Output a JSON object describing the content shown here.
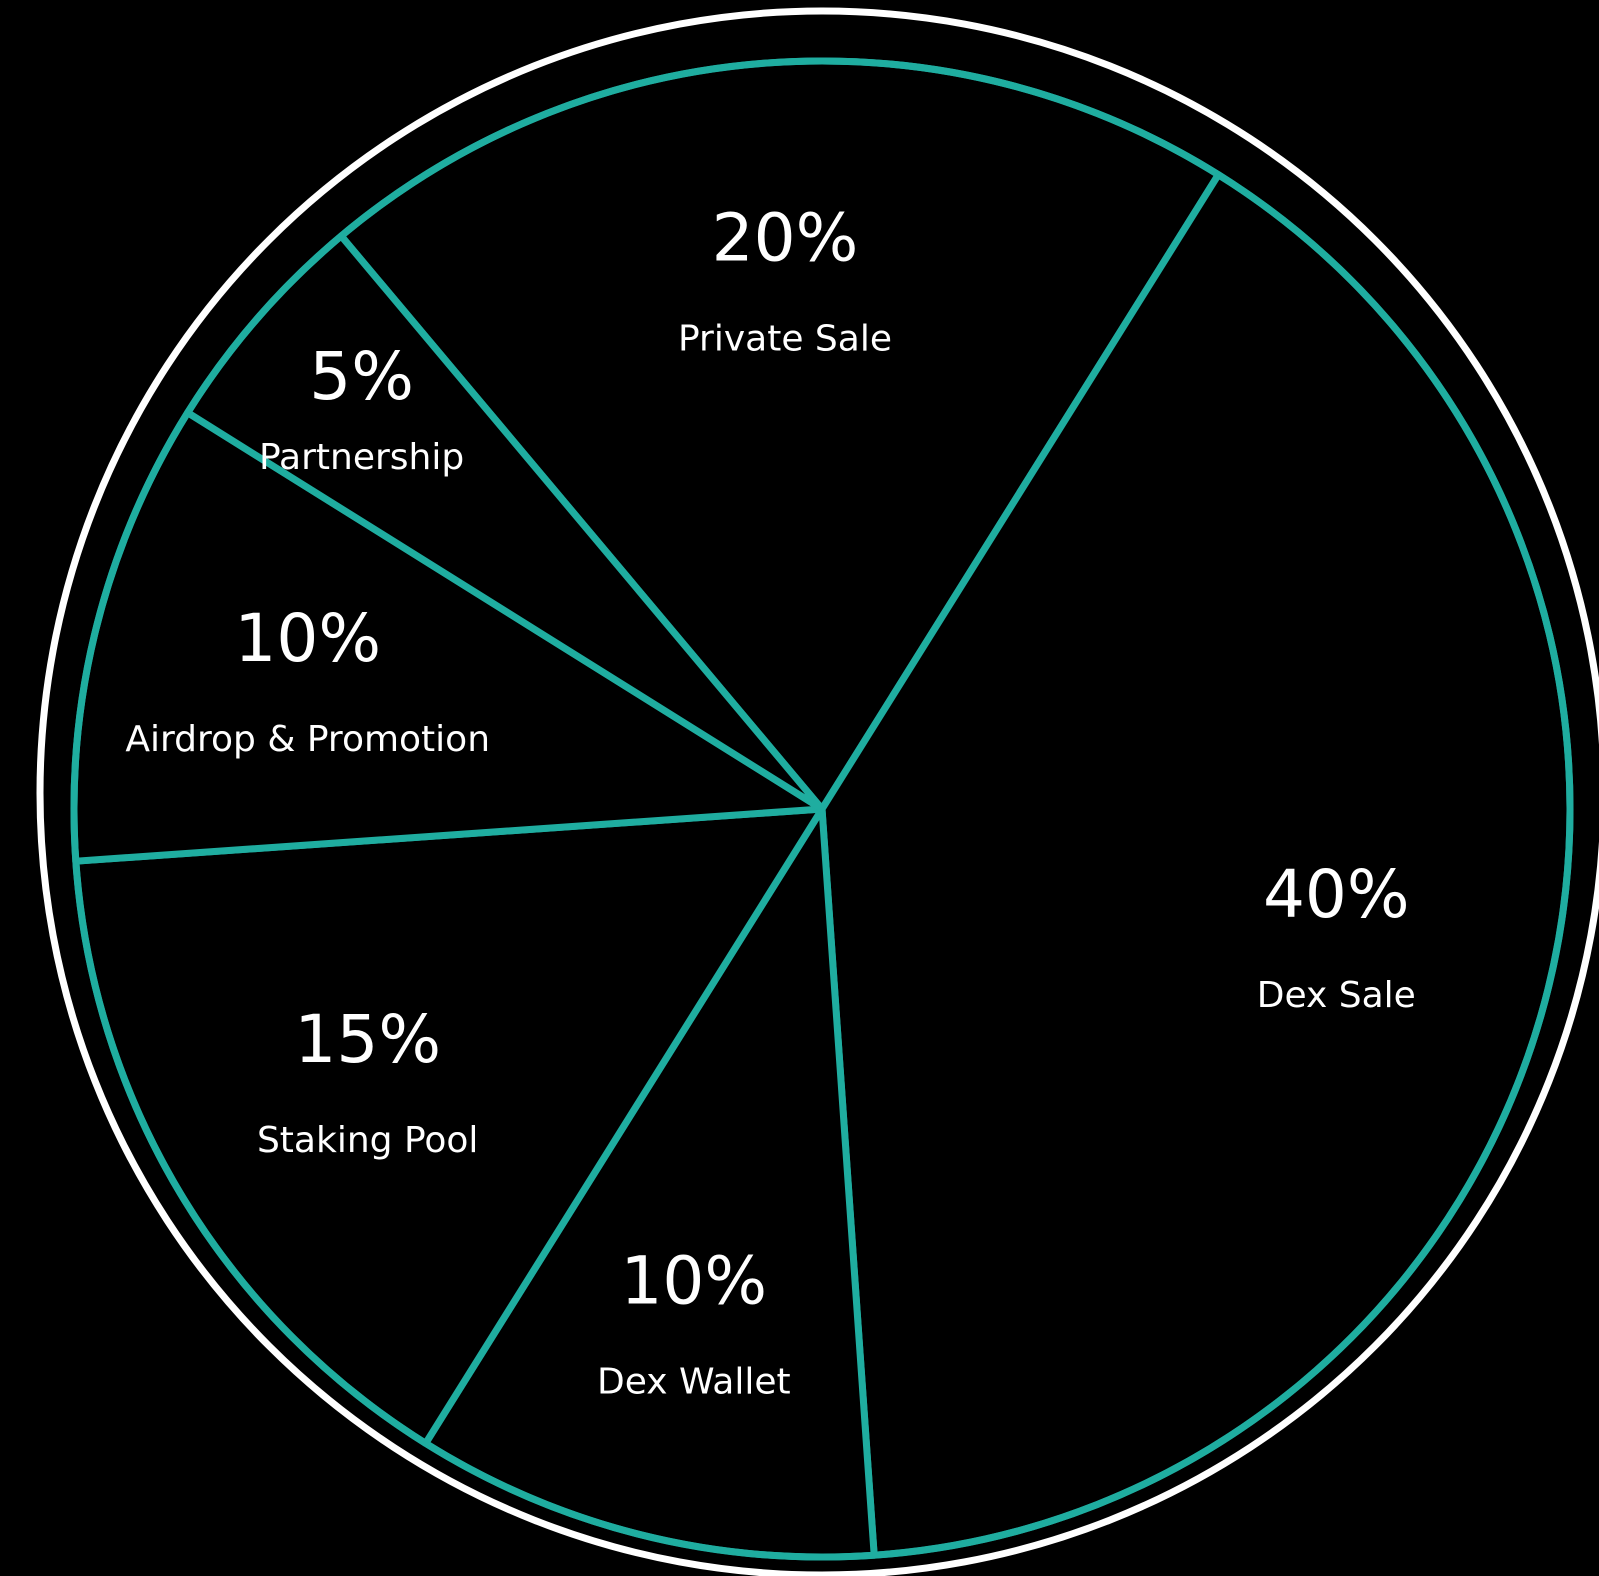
{
  "chart_data": {
    "type": "pie",
    "title": "",
    "slices": [
      {
        "label": "Private Sale",
        "value": 20,
        "value_label": "20%"
      },
      {
        "label": "Dex Sale",
        "value": 40,
        "value_label": "40%"
      },
      {
        "label": "Dex Wallet",
        "value": 10,
        "value_label": "10%"
      },
      {
        "label": "Staking Pool",
        "value": 15,
        "value_label": "15%"
      },
      {
        "label": "Airdrop & Promotion",
        "value": 10,
        "value_label": "10%"
      },
      {
        "label": "Partnership",
        "value": 5,
        "value_label": "5%"
      }
    ],
    "colors": {
      "background": "#000000",
      "slice_fill": "#000000",
      "divider": "#1fada0",
      "outer_ring": "#ffffff",
      "text": "#ffffff"
    },
    "legend": "none"
  }
}
